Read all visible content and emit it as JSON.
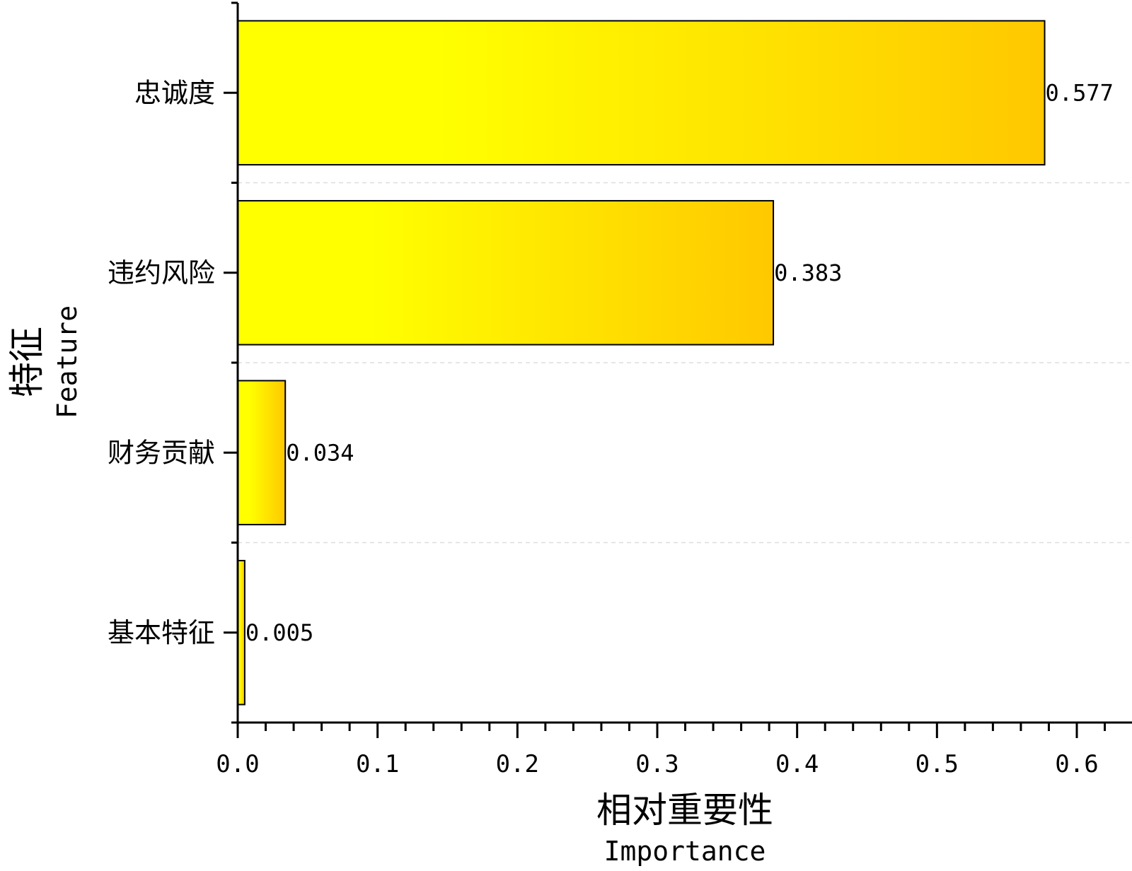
{
  "chart_data": {
    "type": "bar",
    "orientation": "horizontal",
    "categories": [
      "忠诚度",
      "违约风险",
      "财务贡献",
      "基本特征"
    ],
    "values": [
      0.577,
      0.383,
      0.034,
      0.005
    ],
    "value_labels": [
      "0.577",
      "0.383",
      "0.034",
      "0.005"
    ],
    "xlabel": "相对重要性",
    "xlabel_en": "Importance",
    "ylabel": "特征",
    "ylabel_en": "Feature",
    "xlim": [
      0,
      0.64
    ],
    "xticks": [
      0.0,
      0.1,
      0.2,
      0.3,
      0.4,
      0.5,
      0.6
    ],
    "xtick_labels": [
      "0.0",
      "0.1",
      "0.2",
      "0.3",
      "0.4",
      "0.5",
      "0.6"
    ],
    "grid": "horizontal dashed between bars",
    "colors": {
      "gradient_start": "#ffff00",
      "gradient_end": "#ffc800",
      "stroke": "#000000",
      "grid": "#dddddd"
    }
  }
}
